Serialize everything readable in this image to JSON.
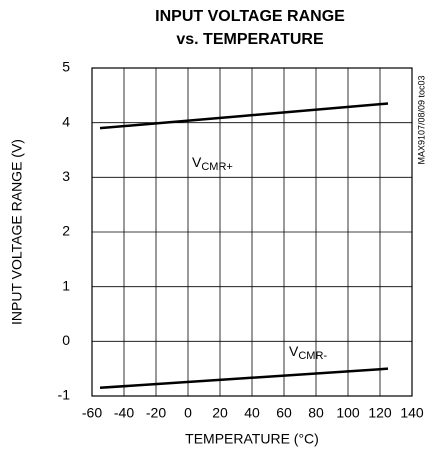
{
  "chart_data": {
    "type": "line",
    "title": [
      "INPUT VOLTAGE RANGE",
      "vs. TEMPERATURE"
    ],
    "x_label": "TEMPERATURE (°C)",
    "y_label": "INPUT VOLTAGE RANGE (V)",
    "side_note": "MAX9107/08/09 toc03",
    "x": [
      -55,
      35,
      125
    ],
    "series": [
      {
        "name": {
          "main": "V",
          "sub": "CMR+"
        },
        "color": "#000000",
        "values": [
          3.9,
          4.125,
          4.35
        ]
      },
      {
        "name": {
          "main": "V",
          "sub": "CMR-"
        },
        "color": "#000000",
        "values": [
          -0.85,
          -0.675,
          -0.5
        ]
      }
    ],
    "xlim": [
      -60,
      140
    ],
    "xticks": [
      -60,
      -40,
      -20,
      0,
      20,
      40,
      60,
      80,
      100,
      120,
      140
    ],
    "ylim": [
      -1,
      5
    ],
    "yticks": [
      -1,
      0,
      1,
      2,
      3,
      4,
      5
    ],
    "grid": true
  }
}
